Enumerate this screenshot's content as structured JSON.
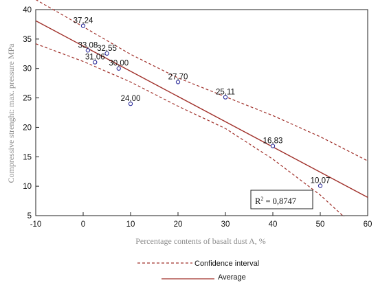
{
  "chart_data": {
    "type": "scatter",
    "title": "",
    "xlabel": "Percentage contents of basalt dust A, %",
    "ylabel": "Compressive strenght: max. pressure MPa",
    "xlim": [
      -10,
      60
    ],
    "ylim": [
      5,
      40
    ],
    "x_ticks": [
      -10,
      0,
      10,
      20,
      30,
      40,
      50,
      60
    ],
    "y_ticks": [
      5,
      10,
      15,
      20,
      25,
      30,
      35,
      40
    ],
    "x_tick_labels": [
      "-10",
      "0",
      "10",
      "20",
      "30",
      "40",
      "50",
      "60"
    ],
    "y_tick_labels": [
      "5",
      "10",
      "15",
      "20",
      "25",
      "30",
      "35",
      "40"
    ],
    "grid": false,
    "points": [
      {
        "x": 0,
        "y": 37.24,
        "label": "37,24"
      },
      {
        "x": 1,
        "y": 33.08,
        "label": "33,08"
      },
      {
        "x": 5,
        "y": 32.55,
        "label": "32,55"
      },
      {
        "x": 2.5,
        "y": 31.06,
        "label": "31,06"
      },
      {
        "x": 7.5,
        "y": 30.0,
        "label": "30,00"
      },
      {
        "x": 10,
        "y": 24.0,
        "label": "24,00"
      },
      {
        "x": 20,
        "y": 27.7,
        "label": "27,70"
      },
      {
        "x": 30,
        "y": 25.11,
        "label": "25,11"
      },
      {
        "x": 40,
        "y": 16.83,
        "label": "16,83"
      },
      {
        "x": 50,
        "y": 10.07,
        "label": "10,07"
      }
    ],
    "regression": {
      "x": [
        -10,
        60
      ],
      "y": [
        38.1,
        8.1
      ]
    },
    "confidence_upper": {
      "x": [
        -10,
        0,
        10,
        20,
        30,
        40,
        50,
        60
      ],
      "y": [
        41.7,
        37.1,
        32.4,
        28.4,
        25.2,
        22.0,
        18.4,
        14.3
      ]
    },
    "confidence_lower": {
      "x": [
        -10,
        0,
        10,
        20,
        30,
        40,
        50,
        55
      ],
      "y": [
        34.2,
        31.2,
        27.7,
        23.6,
        19.8,
        14.6,
        8.5,
        4.8
      ]
    },
    "annotation": {
      "prefix": "R",
      "sup": "2",
      "value": " = 0,8747"
    },
    "legend": {
      "placement": "bottom",
      "items": [
        {
          "label": "Confidence interval",
          "style": "dashed"
        },
        {
          "label": "Average",
          "style": "solid"
        }
      ]
    },
    "colors": {
      "line": "#a0302a",
      "points": "#2a2a9a",
      "axis": "#222222",
      "text": "#111111",
      "axis_label": "#8a8a8a"
    }
  }
}
